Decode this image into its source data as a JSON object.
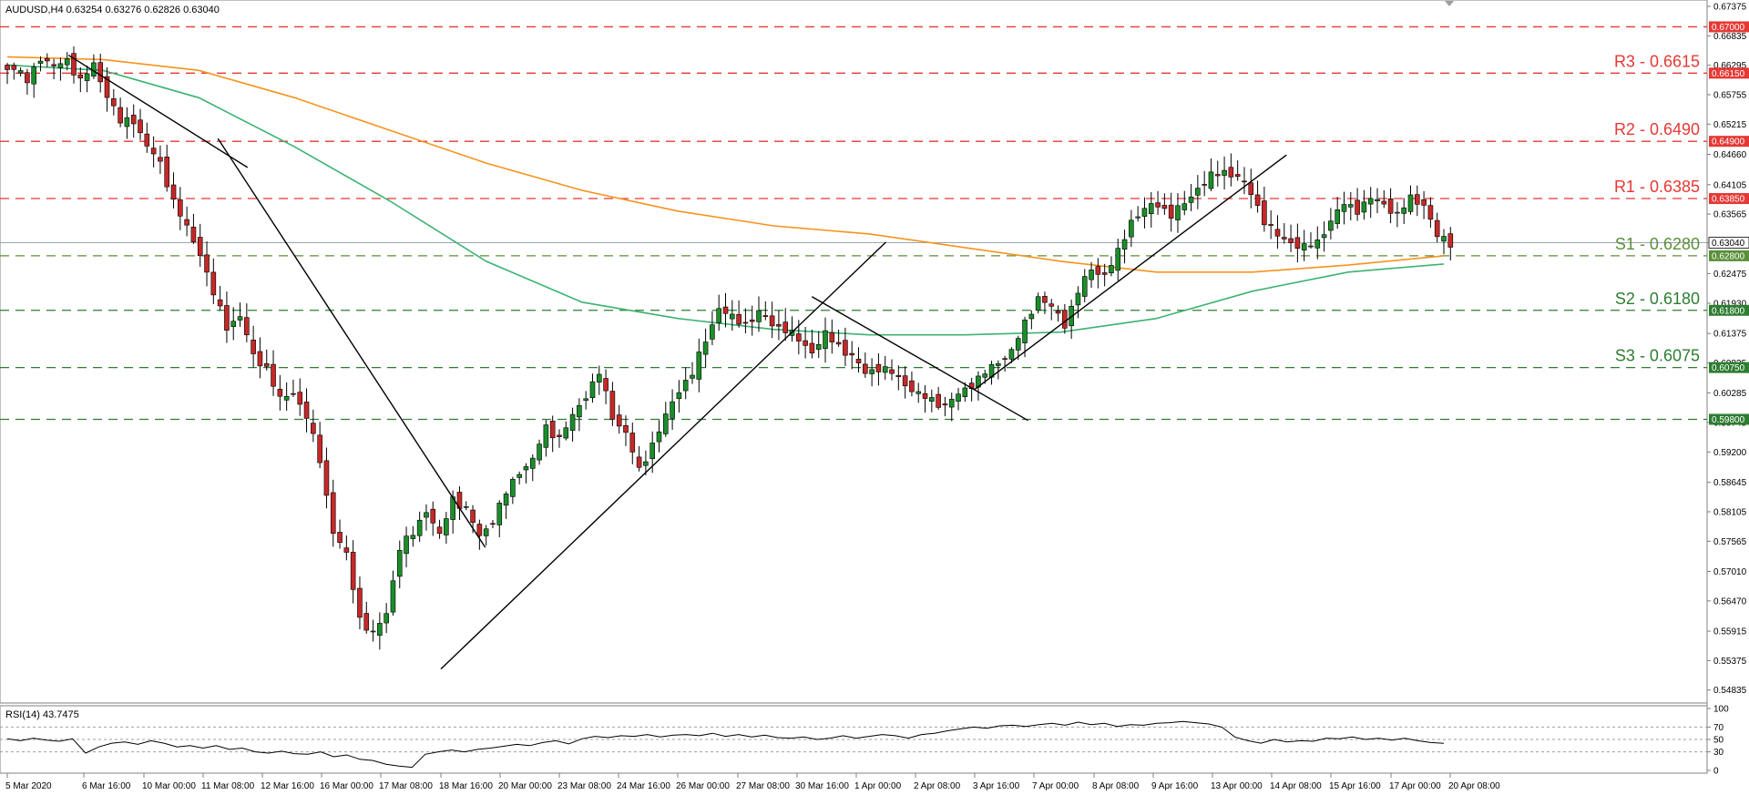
{
  "chart_data": {
    "type": "candlestick",
    "symbol_header": "AUDUSD,H4  0.63254 0.63276 0.62826 0.63040",
    "current_price": 0.6304,
    "ylim": [
      0.5468,
      0.67375
    ],
    "price_ticks": [
      "0.67375",
      "0.66835",
      "0.66295",
      "0.65755",
      "0.65215",
      "0.64660",
      "0.64105",
      "0.63565",
      "0.63040",
      "0.62475",
      "0.61930",
      "0.61375",
      "0.60835",
      "0.60285",
      "0.59745",
      "0.59200",
      "0.58645",
      "0.58105",
      "0.57565",
      "0.57010",
      "0.56470",
      "0.55915",
      "0.55375",
      "0.54835"
    ],
    "x_ticks": [
      "5 Mar 2020",
      "6 Mar 16:00",
      "10 Mar 00:00",
      "11 Mar 08:00",
      "12 Mar 16:00",
      "16 Mar 00:00",
      "17 Mar 08:00",
      "18 Mar 16:00",
      "20 Mar 00:00",
      "23 Mar 08:00",
      "24 Mar 16:00",
      "26 Mar 00:00",
      "27 Mar 08:00",
      "30 Mar 16:00",
      "1 Apr 00:00",
      "2 Apr 08:00",
      "3 Apr 16:00",
      "7 Apr 00:00",
      "8 Apr 08:00",
      "9 Apr 16:00",
      "13 Apr 00:00",
      "14 Apr 08:00",
      "15 Apr 16:00",
      "17 Apr 00:00",
      "20 Apr 08:00"
    ],
    "levels": [
      {
        "label": "",
        "tag": "0.67000",
        "value": 0.67,
        "color": "#e53935",
        "dash": "dashed"
      },
      {
        "label": "R3 - 0.6615",
        "tag": "0.66150",
        "value": 0.6615,
        "color": "#e53935",
        "dash": "dashed"
      },
      {
        "label": "R2 - 0.6490",
        "tag": "0.64900",
        "value": 0.649,
        "color": "#e53935",
        "dash": "dashed"
      },
      {
        "label": "R1 - 0.6385",
        "tag": "0.63850",
        "value": 0.6385,
        "color": "#e53935",
        "dash": "dashed"
      },
      {
        "label": "S1 - 0.6280",
        "tag": "0.62800",
        "value": 0.628,
        "color": "#5b8f3a",
        "dash": "dashed"
      },
      {
        "label": "S2 - 0.6180",
        "tag": "0.61800",
        "value": 0.618,
        "color": "#2e7d32",
        "dash": "dashed"
      },
      {
        "label": "S3 - 0.6075",
        "tag": "0.60750",
        "value": 0.6075,
        "color": "#2e7d32",
        "dash": "dashed"
      },
      {
        "label": "",
        "tag": "0.59800",
        "value": 0.598,
        "color": "#2e7d32",
        "dash": "dashed"
      }
    ],
    "current_tag": "0.63040",
    "close_path": [
      0.6625,
      0.66,
      0.6645,
      0.6625,
      0.664,
      0.66,
      0.663,
      0.6575,
      0.6525,
      0.653,
      0.648,
      0.645,
      0.638,
      0.633,
      0.6285,
      0.621,
      0.615,
      0.617,
      0.6095,
      0.6075,
      0.6015,
      0.603,
      0.5985,
      0.5905,
      0.5775,
      0.573,
      0.5615,
      0.5585,
      0.5625,
      0.5745,
      0.577,
      0.5815,
      0.5765,
      0.5835,
      0.5815,
      0.5765,
      0.5795,
      0.5845,
      0.5885,
      0.5905,
      0.5965,
      0.5945,
      0.5985,
      0.6025,
      0.6065,
      0.5985,
      0.5955,
      0.5885,
      0.5935,
      0.5985,
      0.6035,
      0.6065,
      0.6125,
      0.6185,
      0.6165,
      0.6155,
      0.6175,
      0.6155,
      0.6145,
      0.6125,
      0.6105,
      0.6135,
      0.6115,
      0.6095,
      0.6065,
      0.6075,
      0.6065,
      0.6045,
      0.6025,
      0.6015,
      0.6005,
      0.6025,
      0.6045,
      0.6065,
      0.6085,
      0.6105,
      0.6155,
      0.6205,
      0.6185,
      0.6155,
      0.6215,
      0.6255,
      0.6245,
      0.6285,
      0.6345,
      0.6365,
      0.6375,
      0.6355,
      0.6375,
      0.6405,
      0.6425,
      0.6435,
      0.6425,
      0.6395,
      0.6345,
      0.6315,
      0.6305,
      0.6295,
      0.6305,
      0.6345,
      0.6375,
      0.6365,
      0.6385,
      0.6375,
      0.6355,
      0.6385,
      0.6375,
      0.6315,
      0.6304
    ],
    "ma_series": [
      {
        "color": "#f7931e",
        "values": [
          0.6645,
          0.664,
          0.662,
          0.657,
          0.651,
          0.645,
          0.64,
          0.6362,
          0.6335,
          0.632,
          0.6295,
          0.627,
          0.625,
          0.625,
          0.6263,
          0.628
        ]
      },
      {
        "color": "#3cb371",
        "values": [
          0.663,
          0.662,
          0.657,
          0.648,
          0.638,
          0.627,
          0.6195,
          0.6165,
          0.6145,
          0.6135,
          0.6135,
          0.614,
          0.6165,
          0.6215,
          0.625,
          0.6265
        ]
      }
    ],
    "trendlines": [
      {
        "from": [
          "6 Mar 08:00",
          0.6648
        ],
        "to": [
          "12 Mar 08:00",
          0.6442
        ]
      },
      {
        "from": [
          "11 Mar 16:00",
          0.6495
        ],
        "to": [
          "19 Mar 16:00",
          0.5745
        ]
      },
      {
        "from": [
          "18 Mar 16:00",
          0.5522
        ],
        "to": [
          "1 Apr 16:00",
          0.6305
        ]
      },
      {
        "from": [
          "31 Mar 00:00",
          0.6205
        ],
        "to": [
          "6 Apr 16:00",
          0.5978
        ]
      },
      {
        "from": [
          "3 Apr 16:00",
          0.6035
        ],
        "to": [
          "14 Apr 16:00",
          0.6465
        ]
      }
    ],
    "rsi": {
      "label": "RSI(14) 43.7475",
      "ticks": [
        "100",
        "70",
        "50",
        "30",
        "0"
      ],
      "levels": [
        70,
        50,
        30
      ],
      "values": [
        51,
        48,
        52,
        49,
        47,
        51,
        28,
        38,
        44,
        46,
        42,
        48,
        44,
        38,
        40,
        36,
        40,
        34,
        36,
        30,
        28,
        31,
        27,
        26,
        30,
        22,
        25,
        18,
        16,
        10,
        7,
        5,
        26,
        30,
        33,
        30,
        34,
        36,
        39,
        42,
        40,
        45,
        48,
        43,
        51,
        55,
        53,
        56,
        55,
        58,
        54,
        57,
        58,
        56,
        60,
        55,
        58,
        54,
        57,
        53,
        52,
        54,
        50,
        52,
        56,
        52,
        55,
        58,
        56,
        52,
        58,
        60,
        64,
        67,
        70,
        68,
        72,
        73,
        71,
        74,
        76,
        73,
        78,
        74,
        76,
        71,
        74,
        73,
        76,
        77,
        79,
        77,
        75,
        70,
        54,
        48,
        44,
        50,
        46,
        48,
        47,
        52,
        51,
        54,
        50,
        52,
        49,
        52,
        48,
        45,
        43.7475
      ]
    }
  }
}
